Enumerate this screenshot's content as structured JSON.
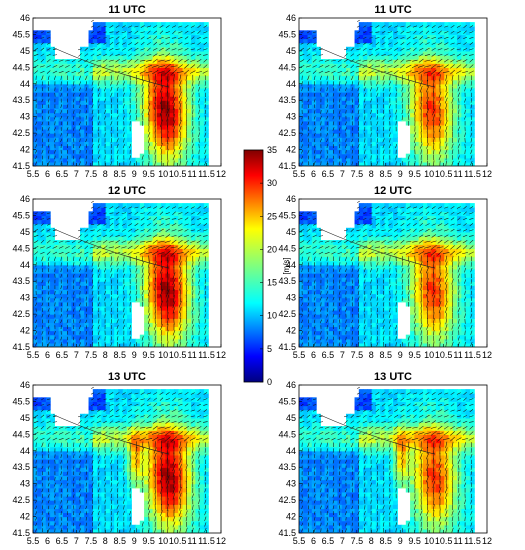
{
  "chart_data": [
    {
      "type": "heatmap",
      "title": "11 UTC",
      "xticks": [
        "5.5",
        "6",
        "6.5",
        "7",
        "7.5",
        "8",
        "8.5",
        "9",
        "9.5",
        "10",
        "10.5",
        "11",
        "11.5",
        "12"
      ],
      "yticks": [
        "41.5",
        "42",
        "42.5",
        "43",
        "43.5",
        "44",
        "44.5",
        "45",
        "45.5",
        "46"
      ],
      "xlim": [
        5.5,
        12
      ],
      "ylim": [
        41.5,
        46
      ],
      "vector_overlay": "wind arrows"
    },
    {
      "type": "heatmap",
      "title": "11 UTC",
      "xticks": [
        "5.5",
        "6",
        "6.5",
        "7",
        "7.5",
        "8",
        "8.5",
        "9",
        "9.5",
        "10",
        "10.5",
        "11",
        "11.5",
        "12"
      ],
      "yticks": [
        "41.5",
        "42",
        "42.5",
        "43",
        "43.5",
        "44",
        "44.5",
        "45",
        "45.5",
        "46"
      ],
      "xlim": [
        5.5,
        12
      ],
      "ylim": [
        41.5,
        46
      ],
      "vector_overlay": "wind arrows"
    },
    {
      "type": "heatmap",
      "title": "12 UTC",
      "xticks": [
        "5.5",
        "6",
        "6.5",
        "7",
        "7.5",
        "8",
        "8.5",
        "9",
        "9.5",
        "10",
        "10.5",
        "11",
        "11.5",
        "12"
      ],
      "yticks": [
        "41.5",
        "42",
        "42.5",
        "43",
        "43.5",
        "44",
        "44.5",
        "45",
        "45.5",
        "46"
      ],
      "xlim": [
        5.5,
        12
      ],
      "ylim": [
        41.5,
        46
      ],
      "vector_overlay": "wind arrows"
    },
    {
      "type": "heatmap",
      "title": "12 UTC",
      "xticks": [
        "5.5",
        "6",
        "6.5",
        "7",
        "7.5",
        "8",
        "8.5",
        "9",
        "9.5",
        "10",
        "10.5",
        "11",
        "11.5",
        "12"
      ],
      "yticks": [
        "41.5",
        "42",
        "42.5",
        "43",
        "43.5",
        "44",
        "44.5",
        "45",
        "45.5",
        "46"
      ],
      "xlim": [
        5.5,
        12
      ],
      "ylim": [
        41.5,
        46
      ],
      "vector_overlay": "wind arrows"
    },
    {
      "type": "heatmap",
      "title": "13 UTC",
      "xticks": [
        "5.5",
        "6",
        "6.5",
        "7",
        "7.5",
        "8",
        "8.5",
        "9",
        "9.5",
        "10",
        "10.5",
        "11",
        "11.5",
        "12"
      ],
      "yticks": [
        "41.5",
        "42",
        "42.5",
        "43",
        "43.5",
        "44",
        "44.5",
        "45",
        "45.5",
        "46"
      ],
      "xlim": [
        5.5,
        12
      ],
      "ylim": [
        41.5,
        46
      ],
      "vector_overlay": "wind arrows"
    },
    {
      "type": "heatmap",
      "title": "13 UTC",
      "xticks": [
        "5.5",
        "6",
        "6.5",
        "7",
        "7.5",
        "8",
        "8.5",
        "9",
        "9.5",
        "10",
        "10.5",
        "11",
        "11.5",
        "12"
      ],
      "yticks": [
        "41.5",
        "42",
        "42.5",
        "43",
        "43.5",
        "44",
        "44.5",
        "45",
        "45.5",
        "46"
      ],
      "xlim": [
        5.5,
        12
      ],
      "ylim": [
        41.5,
        46
      ],
      "vector_overlay": "wind arrows"
    }
  ],
  "colorbar": {
    "label": "[m/s]",
    "ticks": [
      "0",
      "5",
      "10",
      "15",
      "20",
      "25",
      "30",
      "35"
    ],
    "range": [
      0,
      35
    ],
    "colormap": "jet"
  }
}
